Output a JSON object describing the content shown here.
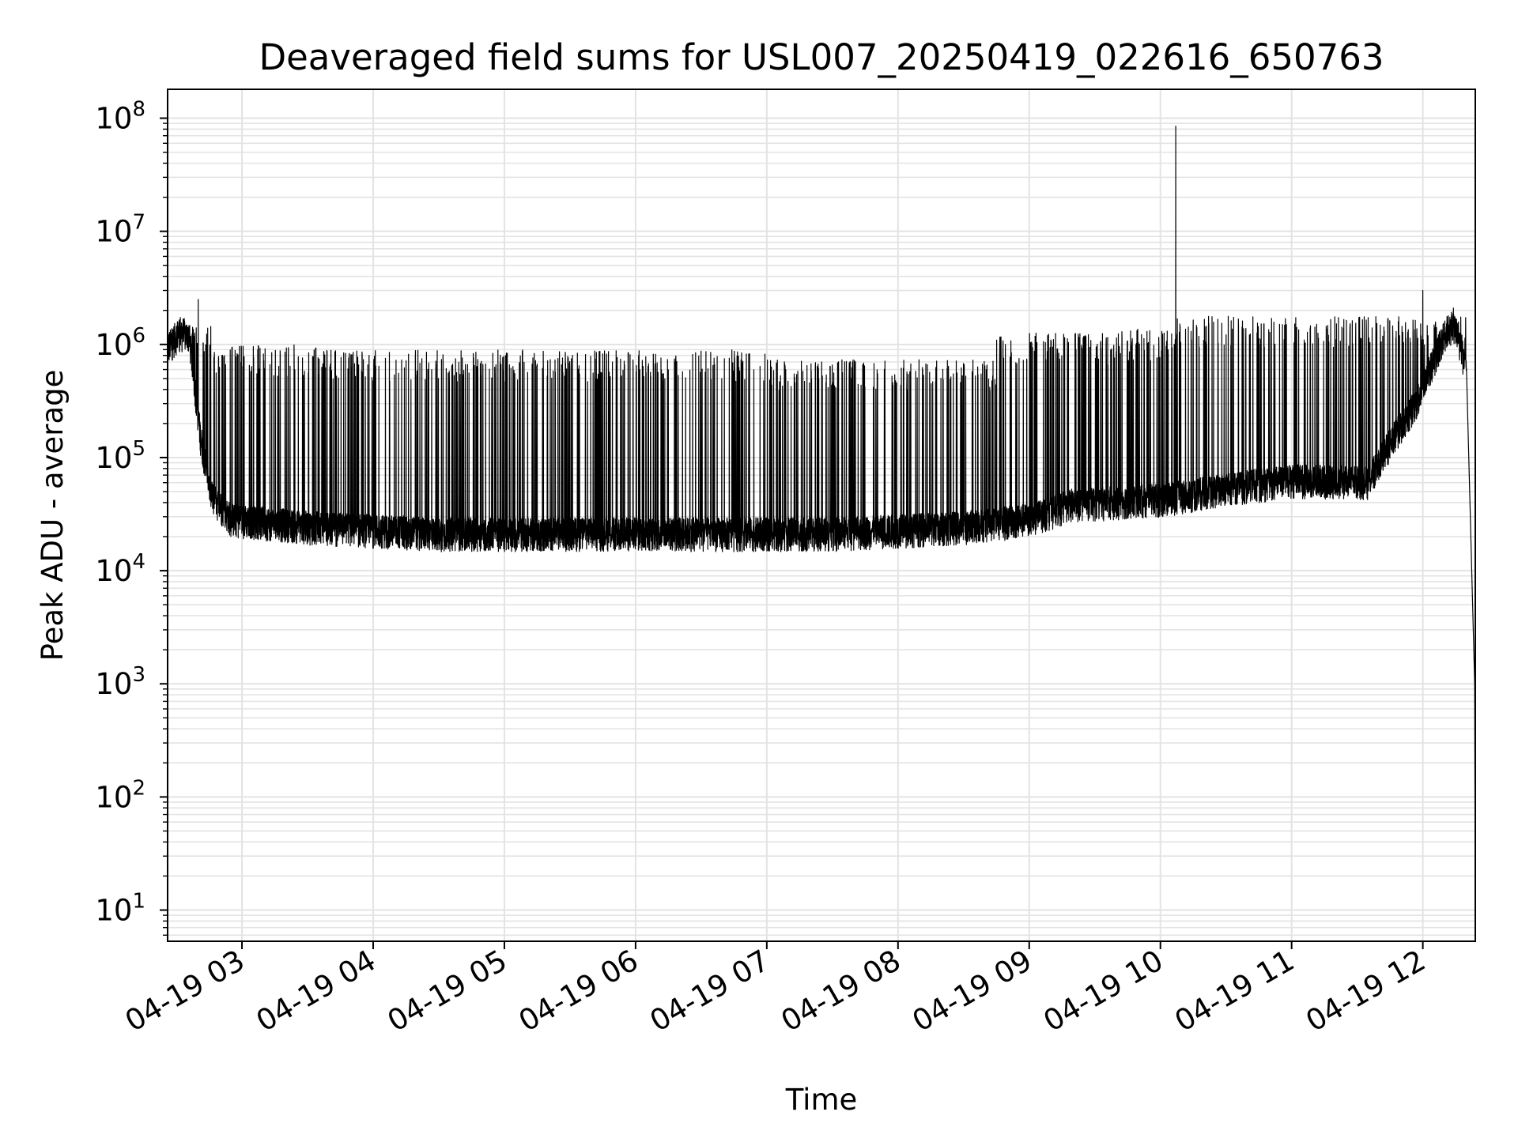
{
  "chart_data": {
    "type": "line",
    "title": "Deaveraged field sums for USL007_20250419_022616_650763",
    "xlabel": "Time",
    "ylabel": "Peak ADU - average",
    "yscale": "log",
    "ylim": [
      5.3,
      180000000
    ],
    "xlim": [
      "04-19 02:26",
      "04-19 12:24"
    ],
    "grid": true,
    "line_color": "#000000",
    "grid_color": "#e3e3e3",
    "x_ticks": [
      {
        "t": "04-19 03:00",
        "label": "04-19 03"
      },
      {
        "t": "04-19 04:00",
        "label": "04-19 04"
      },
      {
        "t": "04-19 05:00",
        "label": "04-19 05"
      },
      {
        "t": "04-19 06:00",
        "label": "04-19 06"
      },
      {
        "t": "04-19 07:00",
        "label": "04-19 07"
      },
      {
        "t": "04-19 08:00",
        "label": "04-19 08"
      },
      {
        "t": "04-19 09:00",
        "label": "04-19 09"
      },
      {
        "t": "04-19 10:00",
        "label": "04-19 10"
      },
      {
        "t": "04-19 11:00",
        "label": "04-19 11"
      },
      {
        "t": "04-19 12:00",
        "label": "04-19 12"
      }
    ],
    "y_ticks": [
      {
        "value": 10,
        "base": "10",
        "exp": "1"
      },
      {
        "value": 100,
        "base": "10",
        "exp": "2"
      },
      {
        "value": 1000,
        "base": "10",
        "exp": "3"
      },
      {
        "value": 10000,
        "base": "10",
        "exp": "4"
      },
      {
        "value": 100000,
        "base": "10",
        "exp": "5"
      },
      {
        "value": 1000000,
        "base": "10",
        "exp": "6"
      },
      {
        "value": 10000000,
        "base": "10",
        "exp": "7"
      },
      {
        "value": 100000000,
        "base": "10",
        "exp": "8"
      }
    ],
    "series": [
      {
        "baseline": [
          {
            "t": "04-19 02:26",
            "y": 900000
          },
          {
            "t": "04-19 02:32",
            "y": 1300000
          },
          {
            "t": "04-19 02:36",
            "y": 1100000
          },
          {
            "t": "04-19 02:41",
            "y": 150000
          },
          {
            "t": "04-19 02:46",
            "y": 45000
          },
          {
            "t": "04-19 02:55",
            "y": 28000
          },
          {
            "t": "04-19 03:30",
            "y": 24000
          },
          {
            "t": "04-19 04:30",
            "y": 21000
          },
          {
            "t": "04-19 05:30",
            "y": 21000
          },
          {
            "t": "04-19 06:30",
            "y": 21000
          },
          {
            "t": "04-19 07:30",
            "y": 21000
          },
          {
            "t": "04-19 08:30",
            "y": 24000
          },
          {
            "t": "04-19 09:00",
            "y": 28000
          },
          {
            "t": "04-19 09:20",
            "y": 38000
          },
          {
            "t": "04-19 10:00",
            "y": 42000
          },
          {
            "t": "04-19 10:30",
            "y": 52000
          },
          {
            "t": "04-19 11:00",
            "y": 62000
          },
          {
            "t": "04-19 11:35",
            "y": 60000
          },
          {
            "t": "04-19 11:44",
            "y": 120000
          },
          {
            "t": "04-19 11:57",
            "y": 300000
          },
          {
            "t": "04-19 12:10",
            "y": 1200000
          },
          {
            "t": "04-19 12:14",
            "y": 1500000
          },
          {
            "t": "04-19 12:20",
            "y": 600000
          },
          {
            "t": "04-19 12:24",
            "y": 5.3
          }
        ],
        "spike_bands": [
          {
            "start": "04-19 02:26",
            "end": "04-19 02:46",
            "peak": 1400000
          },
          {
            "start": "04-19 02:46",
            "end": "04-19 03:40",
            "peak": 950000
          },
          {
            "start": "04-19 03:40",
            "end": "04-19 07:00",
            "peak": 850000
          },
          {
            "start": "04-19 07:00",
            "end": "04-19 08:45",
            "peak": 700000
          },
          {
            "start": "04-19 08:45",
            "end": "04-19 09:40",
            "peak": 1200000
          },
          {
            "start": "04-19 09:40",
            "end": "04-19 10:07",
            "peak": 1300000
          },
          {
            "start": "04-19 10:07",
            "end": "04-19 12:24",
            "peak": 1700000
          }
        ],
        "peaks": [
          {
            "t": "04-19 02:40",
            "y": 2500000
          },
          {
            "t": "04-19 10:07",
            "y": 85000000
          },
          {
            "t": "04-19 12:00",
            "y": 3000000
          }
        ]
      }
    ]
  }
}
